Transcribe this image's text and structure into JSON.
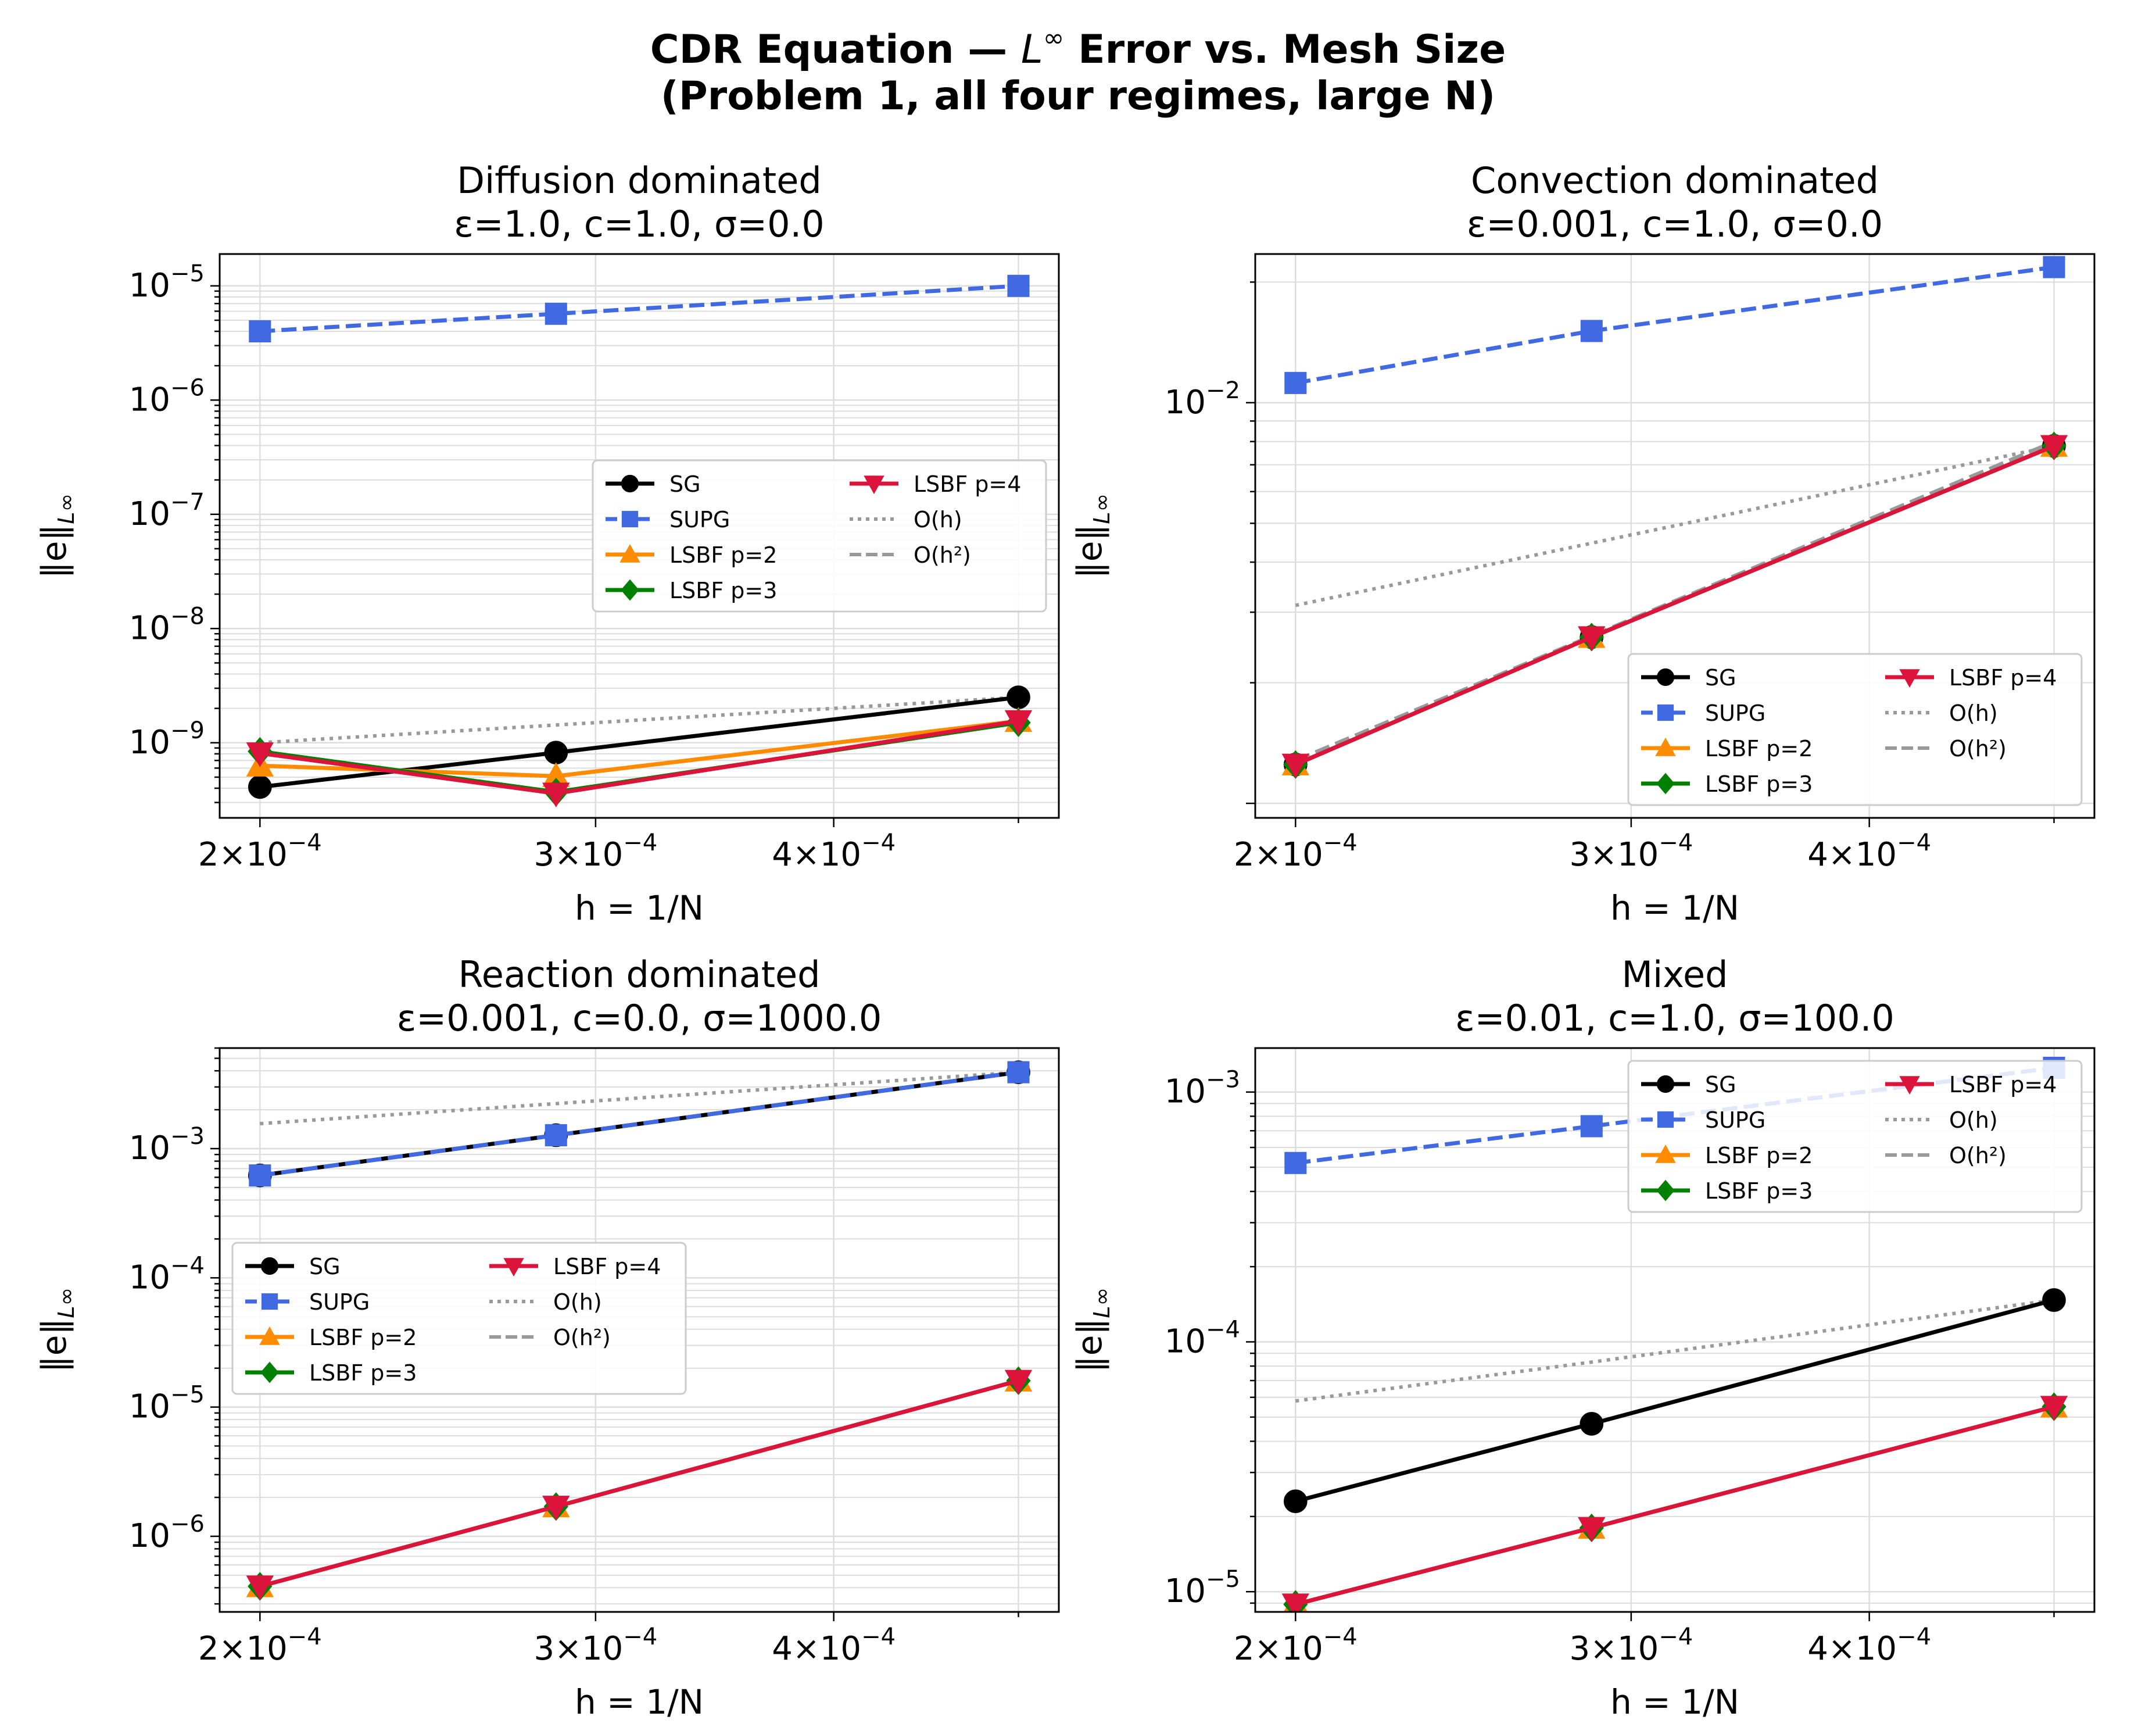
{
  "figure": {
    "title_line1_prefix": "CDR Equation — ",
    "title_line1_math_base": "L",
    "title_line1_math_sup": "∞",
    "title_line1_suffix": " Error vs. Mesh Size",
    "title_line2": "(Problem 1, all four regimes, large N)"
  },
  "colors": {
    "SG": "#000000",
    "SUPG": "#4169E1",
    "LSBF p=2": "#FF8C00",
    "LSBF p=3": "#008000",
    "LSBF p=4": "#DC143C",
    "O(h)": "#999999",
    "O(h²)": "#999999",
    "grid": "#dddddd"
  },
  "legend_entries": [
    "SG",
    "SUPG",
    "LSBF p=2",
    "LSBF p=3",
    "LSBF p=4",
    "O(h)",
    "O(h²)"
  ],
  "chart_data": [
    {
      "type": "line",
      "title": "Diffusion dominated",
      "subtitle": "ε=1.0, c=1.0, σ=0.0",
      "xlabel": "h = 1/N",
      "ylabel": "‖e‖",
      "ylabel_sub": "L∞",
      "xscale": "log",
      "yscale": "log",
      "xlim": [
        0.0001905,
        0.000525
      ],
      "ylim": [
        2.2e-10,
        1.9e-05
      ],
      "xticks": [
        {
          "v": 0.0002,
          "m": "2",
          "e": "−4"
        },
        {
          "v": 0.0003,
          "m": "3",
          "e": "−4"
        },
        {
          "v": 0.0004,
          "m": "4",
          "e": "−4"
        }
      ],
      "yticks": [
        {
          "v": 1e-09,
          "e": "−9"
        },
        {
          "v": 1e-08,
          "e": "−8"
        },
        {
          "v": 1e-07,
          "e": "−7"
        },
        {
          "v": 1e-06,
          "e": "−6"
        },
        {
          "v": 1e-05,
          "e": "−5"
        }
      ],
      "grid": true,
      "legend": "center-right",
      "x": [
        0.0002,
        0.000286,
        0.0005
      ],
      "series": [
        {
          "name": "SG",
          "values": [
            4.1e-10,
            8.2e-10,
            2.5e-09
          ]
        },
        {
          "name": "SUPG",
          "values": [
            4e-06,
            5.7e-06,
            1e-05
          ]
        },
        {
          "name": "LSBF p=2",
          "values": [
            6.3e-10,
            5.1e-10,
            1.55e-09
          ]
        },
        {
          "name": "LSBF p=3",
          "values": [
            8.4e-10,
            3.7e-10,
            1.5e-09
          ]
        },
        {
          "name": "LSBF p=4",
          "values": [
            8.1e-10,
            3.6e-10,
            1.55e-09
          ]
        },
        {
          "name": "O(h)",
          "values": [
            1e-09,
            1.43e-09,
            2.5e-09
          ]
        },
        {
          "name": "O(h²)",
          "values": [
            null,
            null,
            null
          ]
        }
      ]
    },
    {
      "type": "line",
      "title": "Convection dominated",
      "subtitle": "ε=0.001, c=1.0, σ=0.0",
      "xlabel": "h = 1/N",
      "ylabel": "‖e‖",
      "ylabel_sub": "L∞",
      "xscale": "log",
      "yscale": "log",
      "xlim": [
        0.0001905,
        0.000525
      ],
      "ylim": [
        0.00092,
        0.0235
      ],
      "xticks": [
        {
          "v": 0.0002,
          "m": "2",
          "e": "−4"
        },
        {
          "v": 0.0003,
          "m": "3",
          "e": "−4"
        },
        {
          "v": 0.0004,
          "m": "4",
          "e": "−4"
        }
      ],
      "yticks": [
        {
          "v": 0.01,
          "e": "−2"
        }
      ],
      "grid": true,
      "legend": "lower-right",
      "x": [
        0.0002,
        0.000286,
        0.0005
      ],
      "series": [
        {
          "name": "SG",
          "values": [
            0.00125,
            0.0026,
            0.0078
          ]
        },
        {
          "name": "SUPG",
          "values": [
            0.0112,
            0.0151,
            0.0218
          ]
        },
        {
          "name": "LSBF p=2",
          "values": [
            0.00125,
            0.0026,
            0.0078
          ]
        },
        {
          "name": "LSBF p=3",
          "values": [
            0.00125,
            0.0026,
            0.0078
          ]
        },
        {
          "name": "LSBF p=4",
          "values": [
            0.00125,
            0.0026,
            0.0078
          ]
        },
        {
          "name": "O(h)",
          "values": [
            0.00312,
            0.00446,
            0.0078
          ]
        },
        {
          "name": "O(h²)",
          "values": [
            0.00128,
            0.00262,
            0.008
          ]
        }
      ]
    },
    {
      "type": "line",
      "title": "Reaction dominated",
      "subtitle": "ε=0.001, c=0.0, σ=1000.0",
      "xlabel": "h = 1/N",
      "ylabel": "‖e‖",
      "ylabel_sub": "L∞",
      "xscale": "log",
      "yscale": "log",
      "xlim": [
        0.0001905,
        0.000525
      ],
      "ylim": [
        2.6e-07,
        0.006
      ],
      "xticks": [
        {
          "v": 0.0002,
          "m": "2",
          "e": "−4"
        },
        {
          "v": 0.0003,
          "m": "3",
          "e": "−4"
        },
        {
          "v": 0.0004,
          "m": "4",
          "e": "−4"
        }
      ],
      "yticks": [
        {
          "v": 1e-06,
          "e": "−6"
        },
        {
          "v": 1e-05,
          "e": "−5"
        },
        {
          "v": 0.0001,
          "e": "−4"
        },
        {
          "v": 0.001,
          "e": "−3"
        }
      ],
      "grid": true,
      "legend": "center-left",
      "x": [
        0.0002,
        0.000286,
        0.0005
      ],
      "series": [
        {
          "name": "SG",
          "values": [
            0.00062,
            0.00127,
            0.0039
          ]
        },
        {
          "name": "SUPG",
          "values": [
            0.00062,
            0.00127,
            0.0039
          ]
        },
        {
          "name": "LSBF p=2",
          "values": [
            4.1e-07,
            1.7e-06,
            1.6e-05
          ]
        },
        {
          "name": "LSBF p=3",
          "values": [
            4.1e-07,
            1.7e-06,
            1.6e-05
          ]
        },
        {
          "name": "LSBF p=4",
          "values": [
            4.1e-07,
            1.7e-06,
            1.6e-05
          ]
        },
        {
          "name": "O(h)",
          "values": [
            0.00156,
            0.00223,
            0.0039
          ]
        },
        {
          "name": "O(h²)",
          "values": [
            0.00062,
            0.00127,
            0.0039
          ]
        }
      ]
    },
    {
      "type": "line",
      "title": "Mixed",
      "subtitle": "ε=0.01, c=1.0, σ=100.0",
      "xlabel": "h = 1/N",
      "ylabel": "‖e‖",
      "ylabel_sub": "L∞",
      "xscale": "log",
      "yscale": "log",
      "xlim": [
        0.0001905,
        0.000525
      ],
      "ylim": [
        8.3e-06,
        0.0015
      ],
      "xticks": [
        {
          "v": 0.0002,
          "m": "2",
          "e": "−4"
        },
        {
          "v": 0.0003,
          "m": "3",
          "e": "−4"
        },
        {
          "v": 0.0004,
          "m": "4",
          "e": "−4"
        }
      ],
      "yticks": [
        {
          "v": 1e-05,
          "e": "−5"
        },
        {
          "v": 0.0001,
          "e": "−4"
        },
        {
          "v": 0.001,
          "e": "−3"
        }
      ],
      "grid": true,
      "legend": "upper-right",
      "x": [
        0.0002,
        0.000286,
        0.0005
      ],
      "series": [
        {
          "name": "SG",
          "values": [
            2.3e-05,
            4.7e-05,
            0.000147
          ]
        },
        {
          "name": "SUPG",
          "values": [
            0.00052,
            0.00073,
            0.00125
          ]
        },
        {
          "name": "LSBF p=2",
          "values": [
            8.9e-06,
            1.8e-05,
            5.5e-05
          ]
        },
        {
          "name": "LSBF p=3",
          "values": [
            8.9e-06,
            1.8e-05,
            5.5e-05
          ]
        },
        {
          "name": "LSBF p=4",
          "values": [
            8.9e-06,
            1.8e-05,
            5.5e-05
          ]
        },
        {
          "name": "O(h)",
          "values": [
            5.8e-05,
            8.3e-05,
            0.000147
          ]
        },
        {
          "name": "O(h²)",
          "values": [
            null,
            null,
            null
          ]
        }
      ]
    }
  ]
}
